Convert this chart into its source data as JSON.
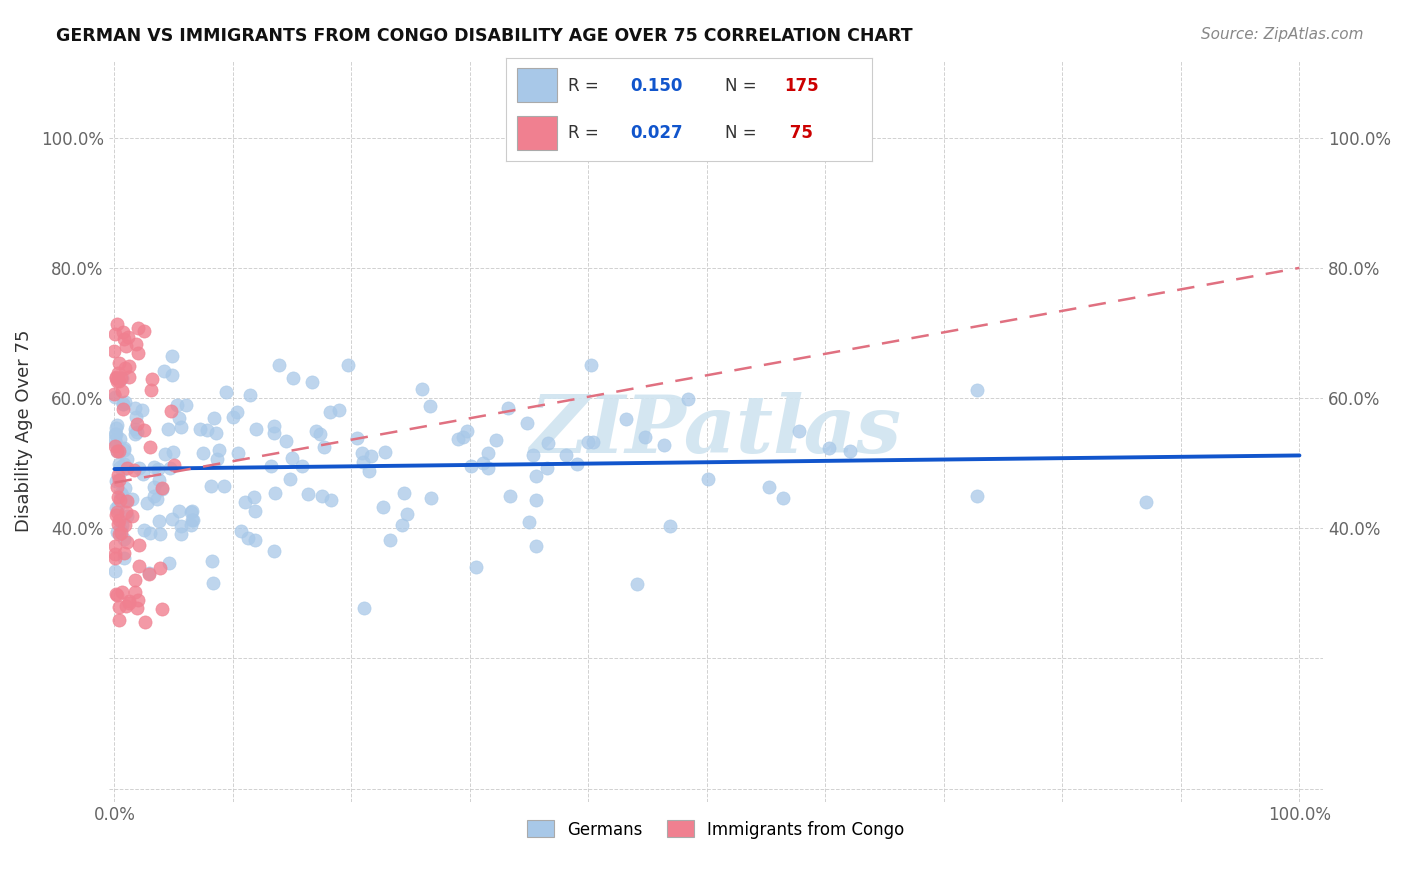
{
  "title": "GERMAN VS IMMIGRANTS FROM CONGO DISABILITY AGE OVER 75 CORRELATION CHART",
  "source": "Source: ZipAtlas.com",
  "ylabel": "Disability Age Over 75",
  "german_R": 0.15,
  "german_N": 175,
  "congo_R": 0.027,
  "congo_N": 75,
  "german_color": "#a8c8e8",
  "congo_color": "#f08090",
  "german_line_color": "#1155cc",
  "congo_line_color": "#e07080",
  "watermark_color": "#d0e4f0",
  "watermark_text": "ZIPatlas",
  "xlim": [
    -0.005,
    1.02
  ],
  "ylim": [
    -0.02,
    1.12
  ],
  "german_seed": 12,
  "congo_seed": 5,
  "background": "#ffffff",
  "grid_color": "#cccccc",
  "tick_color": "#666666",
  "title_color": "#111111",
  "source_color": "#888888"
}
